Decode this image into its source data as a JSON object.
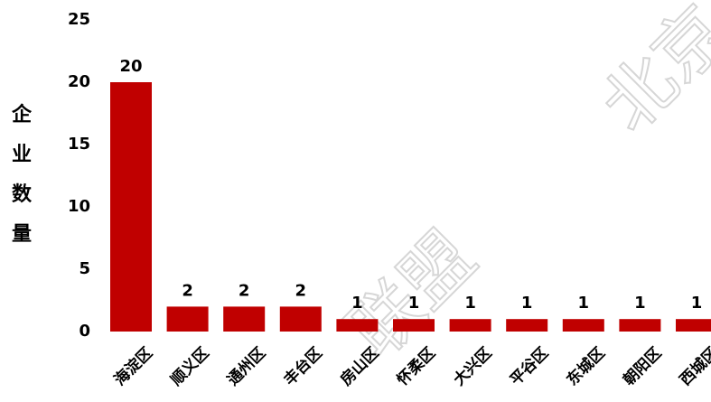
{
  "chart_data": {
    "type": "bar",
    "title": "",
    "xlabel": "",
    "ylabel": "企业数量",
    "categories": [
      "海淀区",
      "顺义区",
      "通州区",
      "丰台区",
      "房山区",
      "怀柔区",
      "大兴区",
      "平谷区",
      "东城区",
      "朝阳区",
      "西城区"
    ],
    "values": [
      20,
      2,
      2,
      2,
      1,
      1,
      1,
      1,
      1,
      1,
      1
    ],
    "ylim": [
      0,
      25
    ],
    "yticks": [
      0,
      5,
      10,
      15,
      20,
      25
    ],
    "grid": false,
    "legend": "none",
    "bar_color": "#c00000"
  },
  "watermarks": [
    "联盟",
    "北京"
  ]
}
